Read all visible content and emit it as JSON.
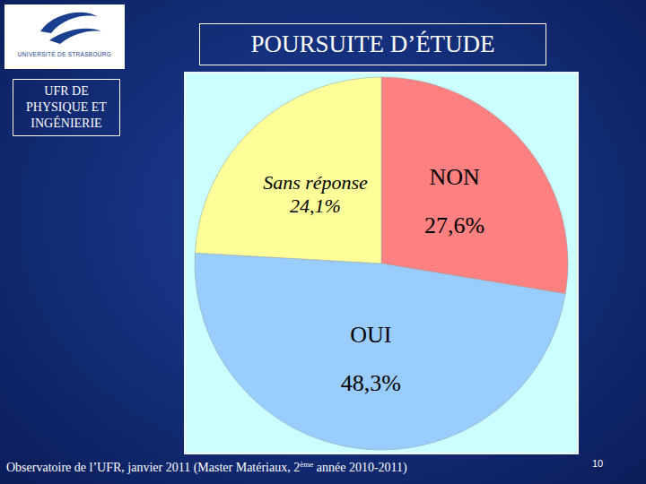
{
  "header": {
    "logo_text": "UNIVERSITÉ DE STRASBOURG",
    "title": "POURSUITE D’ÉTUDE",
    "unit_lines": [
      "UFR DE",
      "PHYSIQUE ET",
      "INGÉNIERIE"
    ]
  },
  "chart_data": {
    "type": "pie",
    "categories": [
      "NON",
      "OUI",
      "Sans réponse"
    ],
    "values": [
      27.6,
      48.3,
      24.1
    ],
    "value_labels": [
      "27,6%",
      "48,3%",
      "24,1%"
    ],
    "colors": [
      "#ff8080",
      "#99ccff",
      "#ffff99"
    ],
    "data_labels": true
  },
  "footer": {
    "before": "Observatoire de l’UFR, janvier 2011 (Master Matériaux, 2",
    "sup": "ème",
    "after": " année 2010-2011)"
  },
  "page_number": "10"
}
